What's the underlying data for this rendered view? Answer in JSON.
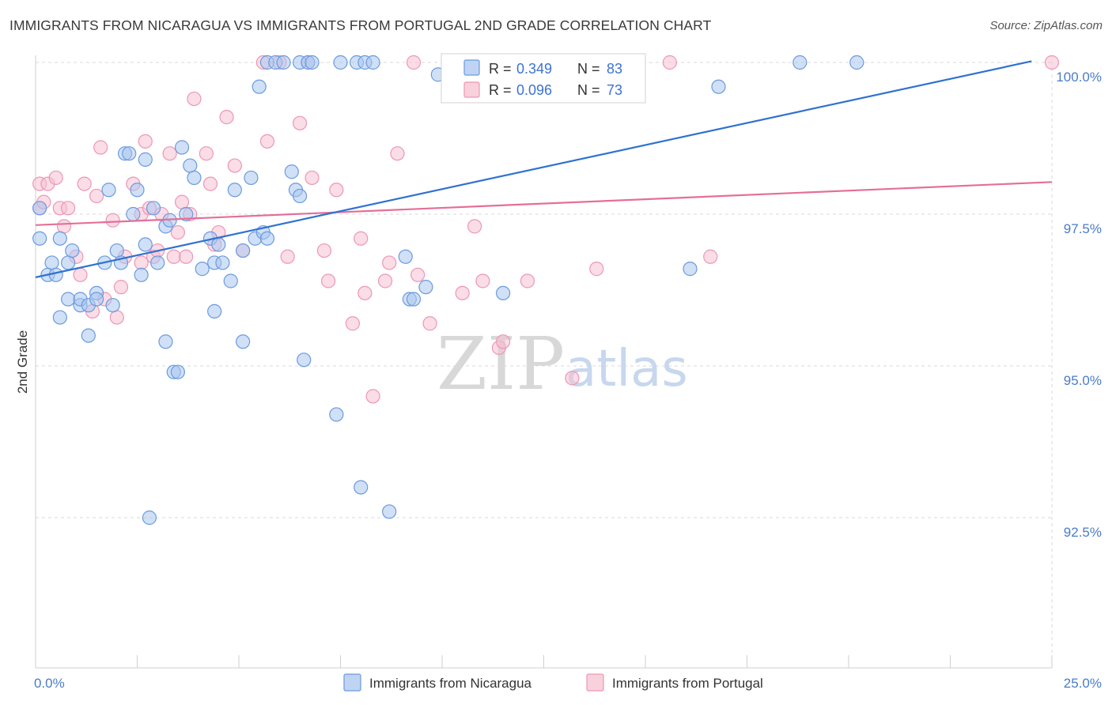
{
  "title": "IMMIGRANTS FROM NICARAGUA VS IMMIGRANTS FROM PORTUGAL 2ND GRADE CORRELATION CHART",
  "source": "Source: ZipAtlas.com",
  "watermark": {
    "zip": "ZIP",
    "atlas": "atlas"
  },
  "colors": {
    "nicaragua_fill": "#a9c6ee",
    "nicaragua_stroke": "#6b9ae0",
    "nicaragua_line": "#2f72d0",
    "portugal_fill": "#f6c1d1",
    "portugal_stroke": "#ee96b4",
    "portugal_line": "#e46f99",
    "tick_label": "#4a7cc9",
    "grid": "#d9d9d9"
  },
  "stats": {
    "r_label": "R =",
    "n_label": "N =",
    "rows": [
      {
        "series": "nicaragua",
        "r": "0.349",
        "n": "83"
      },
      {
        "series": "portugal",
        "r": "0.096",
        "n": "73"
      }
    ]
  },
  "legend": [
    "Immigrants from Nicaragua",
    "Immigrants from Portugal"
  ],
  "chart_data": {
    "type": "scatter",
    "title": "IMMIGRANTS FROM NICARAGUA VS IMMIGRANTS FROM PORTUGAL 2ND GRADE CORRELATION CHART",
    "xlabel": "",
    "ylabel": "2nd Grade",
    "xlim": [
      0,
      25
    ],
    "ylim": [
      90.2,
      100.4
    ],
    "x_tick_labels": [
      "0.0%",
      "25.0%"
    ],
    "y_ticks": [
      92.5,
      95.0,
      97.5,
      100.0
    ],
    "y_tick_labels": [
      "92.5%",
      "95.0%",
      "97.5%",
      "100.0%"
    ],
    "grid": true,
    "legend_position": "bottom-center",
    "series": [
      {
        "name": "Immigrants from Nicaragua",
        "r": 0.349,
        "n": 83,
        "trend": {
          "x": [
            0,
            24.5
          ],
          "y": [
            96.46,
            100.02
          ]
        },
        "points": [
          [
            0.1,
            97.6
          ],
          [
            0.1,
            97.1
          ],
          [
            0.3,
            96.5
          ],
          [
            0.4,
            96.7
          ],
          [
            0.5,
            96.5
          ],
          [
            0.6,
            97.1
          ],
          [
            0.6,
            95.8
          ],
          [
            0.8,
            96.7
          ],
          [
            0.8,
            96.1
          ],
          [
            0.9,
            96.9
          ],
          [
            1.1,
            96.0
          ],
          [
            1.1,
            96.1
          ],
          [
            1.3,
            95.5
          ],
          [
            1.3,
            96.0
          ],
          [
            1.5,
            96.2
          ],
          [
            1.5,
            96.1
          ],
          [
            1.7,
            96.7
          ],
          [
            1.8,
            97.9
          ],
          [
            1.9,
            96.0
          ],
          [
            2.0,
            96.9
          ],
          [
            2.1,
            96.7
          ],
          [
            2.2,
            98.5
          ],
          [
            2.3,
            98.5
          ],
          [
            2.4,
            97.5
          ],
          [
            2.5,
            97.9
          ],
          [
            2.6,
            96.5
          ],
          [
            2.7,
            98.4
          ],
          [
            2.7,
            97.0
          ],
          [
            2.8,
            92.5
          ],
          [
            2.9,
            97.6
          ],
          [
            3.0,
            96.7
          ],
          [
            3.2,
            95.4
          ],
          [
            3.2,
            97.3
          ],
          [
            3.3,
            97.4
          ],
          [
            3.4,
            94.9
          ],
          [
            3.5,
            94.9
          ],
          [
            3.6,
            98.6
          ],
          [
            3.7,
            97.5
          ],
          [
            3.8,
            98.3
          ],
          [
            3.9,
            98.1
          ],
          [
            4.1,
            96.6
          ],
          [
            4.3,
            97.1
          ],
          [
            4.4,
            95.9
          ],
          [
            4.4,
            96.7
          ],
          [
            4.5,
            97.0
          ],
          [
            4.6,
            96.7
          ],
          [
            4.8,
            96.4
          ],
          [
            4.9,
            97.9
          ],
          [
            5.1,
            96.9
          ],
          [
            5.1,
            95.4
          ],
          [
            5.3,
            98.1
          ],
          [
            5.4,
            97.1
          ],
          [
            5.5,
            99.6
          ],
          [
            5.6,
            97.2
          ],
          [
            5.7,
            97.1
          ],
          [
            5.7,
            100.0
          ],
          [
            5.9,
            100.0
          ],
          [
            6.1,
            100.0
          ],
          [
            6.3,
            98.2
          ],
          [
            6.4,
            97.9
          ],
          [
            6.5,
            100.0
          ],
          [
            6.5,
            97.8
          ],
          [
            6.6,
            95.1
          ],
          [
            6.7,
            100.0
          ],
          [
            6.8,
            100.0
          ],
          [
            7.4,
            94.2
          ],
          [
            7.5,
            100.0
          ],
          [
            7.9,
            100.0
          ],
          [
            8.0,
            93.0
          ],
          [
            8.1,
            100.0
          ],
          [
            8.3,
            100.0
          ],
          [
            8.7,
            92.6
          ],
          [
            9.1,
            96.8
          ],
          [
            9.2,
            96.1
          ],
          [
            9.3,
            96.1
          ],
          [
            9.6,
            96.3
          ],
          [
            9.9,
            99.8
          ],
          [
            10.3,
            100.0
          ],
          [
            11.5,
            96.2
          ],
          [
            16.1,
            96.6
          ],
          [
            16.8,
            99.6
          ],
          [
            18.8,
            100.0
          ],
          [
            20.2,
            100.0
          ]
        ]
      },
      {
        "name": "Immigrants from Portugal",
        "r": 0.096,
        "n": 73,
        "trend": {
          "x": [
            0,
            25
          ],
          "y": [
            97.32,
            98.03
          ]
        },
        "points": [
          [
            0.1,
            97.6
          ],
          [
            0.1,
            98.0
          ],
          [
            0.2,
            97.7
          ],
          [
            0.3,
            98.0
          ],
          [
            0.5,
            98.1
          ],
          [
            0.6,
            97.6
          ],
          [
            0.7,
            97.3
          ],
          [
            0.8,
            97.6
          ],
          [
            1.0,
            96.8
          ],
          [
            1.1,
            96.5
          ],
          [
            1.2,
            98.0
          ],
          [
            1.4,
            95.9
          ],
          [
            1.5,
            97.8
          ],
          [
            1.6,
            98.6
          ],
          [
            1.7,
            96.1
          ],
          [
            1.9,
            97.4
          ],
          [
            2.0,
            95.8
          ],
          [
            2.1,
            96.3
          ],
          [
            2.2,
            96.8
          ],
          [
            2.4,
            98.0
          ],
          [
            2.6,
            97.5
          ],
          [
            2.6,
            96.7
          ],
          [
            2.7,
            98.7
          ],
          [
            2.8,
            97.6
          ],
          [
            2.9,
            96.8
          ],
          [
            3.0,
            96.9
          ],
          [
            3.1,
            97.5
          ],
          [
            3.3,
            98.5
          ],
          [
            3.4,
            96.8
          ],
          [
            3.5,
            97.2
          ],
          [
            3.6,
            97.7
          ],
          [
            3.7,
            96.8
          ],
          [
            3.8,
            97.5
          ],
          [
            3.9,
            99.4
          ],
          [
            4.2,
            98.5
          ],
          [
            4.3,
            98.0
          ],
          [
            4.4,
            97.0
          ],
          [
            4.5,
            97.2
          ],
          [
            4.7,
            99.1
          ],
          [
            4.9,
            98.3
          ],
          [
            5.1,
            96.9
          ],
          [
            5.6,
            100.0
          ],
          [
            5.7,
            98.7
          ],
          [
            6.0,
            100.0
          ],
          [
            6.2,
            96.8
          ],
          [
            6.5,
            99.0
          ],
          [
            6.7,
            100.0
          ],
          [
            6.8,
            98.1
          ],
          [
            7.1,
            96.9
          ],
          [
            7.2,
            96.4
          ],
          [
            7.4,
            97.9
          ],
          [
            7.8,
            95.7
          ],
          [
            8.0,
            97.1
          ],
          [
            8.1,
            96.2
          ],
          [
            8.3,
            94.5
          ],
          [
            8.6,
            96.4
          ],
          [
            8.7,
            96.7
          ],
          [
            8.9,
            98.5
          ],
          [
            9.3,
            100.0
          ],
          [
            9.4,
            96.5
          ],
          [
            9.7,
            95.7
          ],
          [
            10.5,
            96.2
          ],
          [
            10.8,
            97.3
          ],
          [
            11.0,
            96.4
          ],
          [
            11.4,
            95.3
          ],
          [
            11.5,
            95.4
          ],
          [
            12.1,
            96.4
          ],
          [
            13.2,
            94.8
          ],
          [
            13.8,
            96.6
          ],
          [
            13.9,
            100.0
          ],
          [
            15.6,
            100.0
          ],
          [
            16.6,
            96.8
          ],
          [
            25.0,
            100.0
          ]
        ]
      }
    ]
  }
}
